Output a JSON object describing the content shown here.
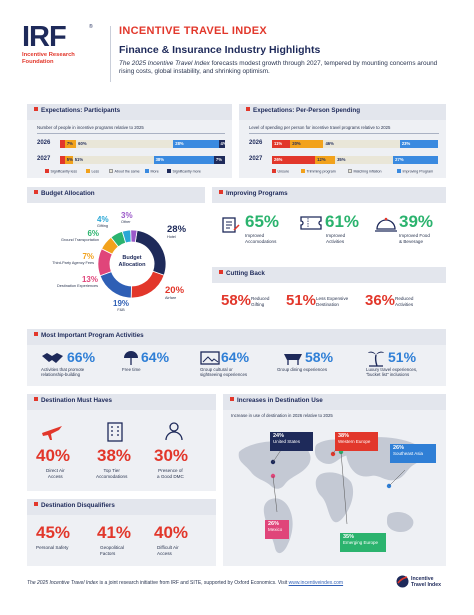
{
  "header": {
    "logo": "IRF",
    "org_line1": "Incentive Research",
    "org_line2": "Foundation",
    "index_title": "INCENTIVE TRAVEL INDEX",
    "subtitle": "Finance & Insurance Industry Highlights",
    "intro_italic": "The 2025 Incentive Travel Index",
    "intro_rest": " forecasts modest growth through 2027, tempered by mounting concerns around rising costs, global instability, and shrinking optimism."
  },
  "participants": {
    "title": "Expectations: Participants",
    "caption": "Number of people in incentive programs relative to 2025",
    "rows": [
      {
        "year": "2026",
        "segments": [
          {
            "label": "",
            "value": 3
          },
          {
            "label": "7%",
            "value": 7
          },
          {
            "label": "60%",
            "value": 60
          },
          {
            "label": "28%",
            "value": 28
          },
          {
            "label": "4%",
            "value": 4
          }
        ]
      },
      {
        "year": "2027",
        "segments": [
          {
            "label": "",
            "value": 3
          },
          {
            "label": "5%",
            "value": 5
          },
          {
            "label": "51%",
            "value": 51
          },
          {
            "label": "38%",
            "value": 38
          },
          {
            "label": "7%",
            "value": 7
          }
        ]
      }
    ],
    "legend": [
      "Significantly less",
      "Less",
      "About the same",
      "More",
      "Significantly more"
    ]
  },
  "spending": {
    "title": "Expectations: Per-Person Spending",
    "caption": "Level of spending per person for incentive travel programs relative to 2025",
    "rows": [
      {
        "year": "2026",
        "segments": [
          {
            "label": "11%",
            "value": 11
          },
          {
            "label": "20%",
            "value": 20
          },
          {
            "label": "46%",
            "value": 46
          },
          {
            "label": "23%",
            "value": 23
          }
        ]
      },
      {
        "year": "2027",
        "segments": [
          {
            "label": "26%",
            "value": 26
          },
          {
            "label": "12%",
            "value": 12
          },
          {
            "label": "35%",
            "value": 35
          },
          {
            "label": "27%",
            "value": 27
          }
        ]
      }
    ],
    "legend": [
      "Unsure",
      "Trimming program",
      "Matching inflation",
      "Improving Program"
    ]
  },
  "budget": {
    "title": "Budget Allocation",
    "center_line1": "Budget",
    "center_line2": "Allocation",
    "items": [
      {
        "pct": "28%",
        "name": "Hotel",
        "value": 28,
        "color": "#1e2a5a"
      },
      {
        "pct": "20%",
        "name": "Airfare",
        "value": 20,
        "color": "#e2372b"
      },
      {
        "pct": "19%",
        "name": "F&B",
        "value": 19,
        "color": "#2f5fb5"
      },
      {
        "pct": "13%",
        "name": "Destination Experiences",
        "value": 13,
        "color": "#e0457a"
      },
      {
        "pct": "7%",
        "name": "Third-Party Agency Fees",
        "value": 7,
        "color": "#f2a21c"
      },
      {
        "pct": "6%",
        "name": "Ground Transportation",
        "value": 6,
        "color": "#2bb36e"
      },
      {
        "pct": "4%",
        "name": "Gifting",
        "value": 4,
        "color": "#2aa7d6"
      },
      {
        "pct": "3%",
        "name": "Other",
        "value": 3,
        "color": "#9b59c9"
      }
    ]
  },
  "improving": {
    "title": "Improving Programs",
    "items": [
      {
        "pct": "65%",
        "label1": "Improved",
        "label2": "Accomodations"
      },
      {
        "pct": "61%",
        "label1": "Improved",
        "label2": "Activities"
      },
      {
        "pct": "39%",
        "label1": "Improved Food",
        "label2": "& Beverage"
      }
    ]
  },
  "cutting": {
    "title": "Cutting Back",
    "items": [
      {
        "pct": "58%",
        "label1": "Reduced",
        "label2": "Gifting"
      },
      {
        "pct": "51%",
        "label1": "Less Expensive",
        "label2": "Destination"
      },
      {
        "pct": "36%",
        "label1": "Reduced",
        "label2": "Activities"
      }
    ]
  },
  "activities": {
    "title": "Most Important Program Activities",
    "items": [
      {
        "pct": "66%",
        "label1": "Activities that promote",
        "label2": "relationship-building"
      },
      {
        "pct": "64%",
        "label1": "Free time",
        "label2": ""
      },
      {
        "pct": "64%",
        "label1": "Group cultural or",
        "label2": "sightseeing experiences"
      },
      {
        "pct": "58%",
        "label1": "Group dining experiences",
        "label2": ""
      },
      {
        "pct": "51%",
        "label1": "Luxury travel experiences,",
        "label2": "\"bucket list\" inclusions"
      }
    ]
  },
  "musthaves": {
    "title": "Destination Must Haves",
    "items": [
      {
        "pct": "40%",
        "label1": "Direct Air",
        "label2": "Access"
      },
      {
        "pct": "38%",
        "label1": "Top Tier",
        "label2": "Accomodations"
      },
      {
        "pct": "30%",
        "label1": "Presence of",
        "label2": "a Good DMC"
      }
    ]
  },
  "increases": {
    "title": "Increases in Destination Use",
    "caption": "Increase in use of destination in 2026 relative to 2025",
    "regions": [
      {
        "pct": "24%",
        "name": "United States"
      },
      {
        "pct": "38%",
        "name": "Western Europe"
      },
      {
        "pct": "26%",
        "name": "Southeast Asia"
      },
      {
        "pct": "26%",
        "name": "Mexico"
      },
      {
        "pct": "35%",
        "name": "Emerging Europe"
      }
    ]
  },
  "disqualifiers": {
    "title": "Destination Disqualifiers",
    "items": [
      {
        "pct": "45%",
        "label1": "Personal Safety",
        "label2": ""
      },
      {
        "pct": "41%",
        "label1": "Geopolitical",
        "label2": "Factors"
      },
      {
        "pct": "40%",
        "label1": "Difficult Air",
        "label2": "Access"
      }
    ]
  },
  "footer": {
    "italic": "The 2025 Incentive Travel Index",
    "rest": " is a joint research initiative from IRF and SITE, supported by Oxford Economics. Visit ",
    "link": "www.incentiveindex.com",
    "logo_line1": "Incentive",
    "logo_line2": "Travel Index"
  },
  "colors": {
    "navy": "#1e2a5a",
    "red": "#e2372b",
    "blue": "#2f7fd6",
    "panel": "#eef0f4"
  }
}
